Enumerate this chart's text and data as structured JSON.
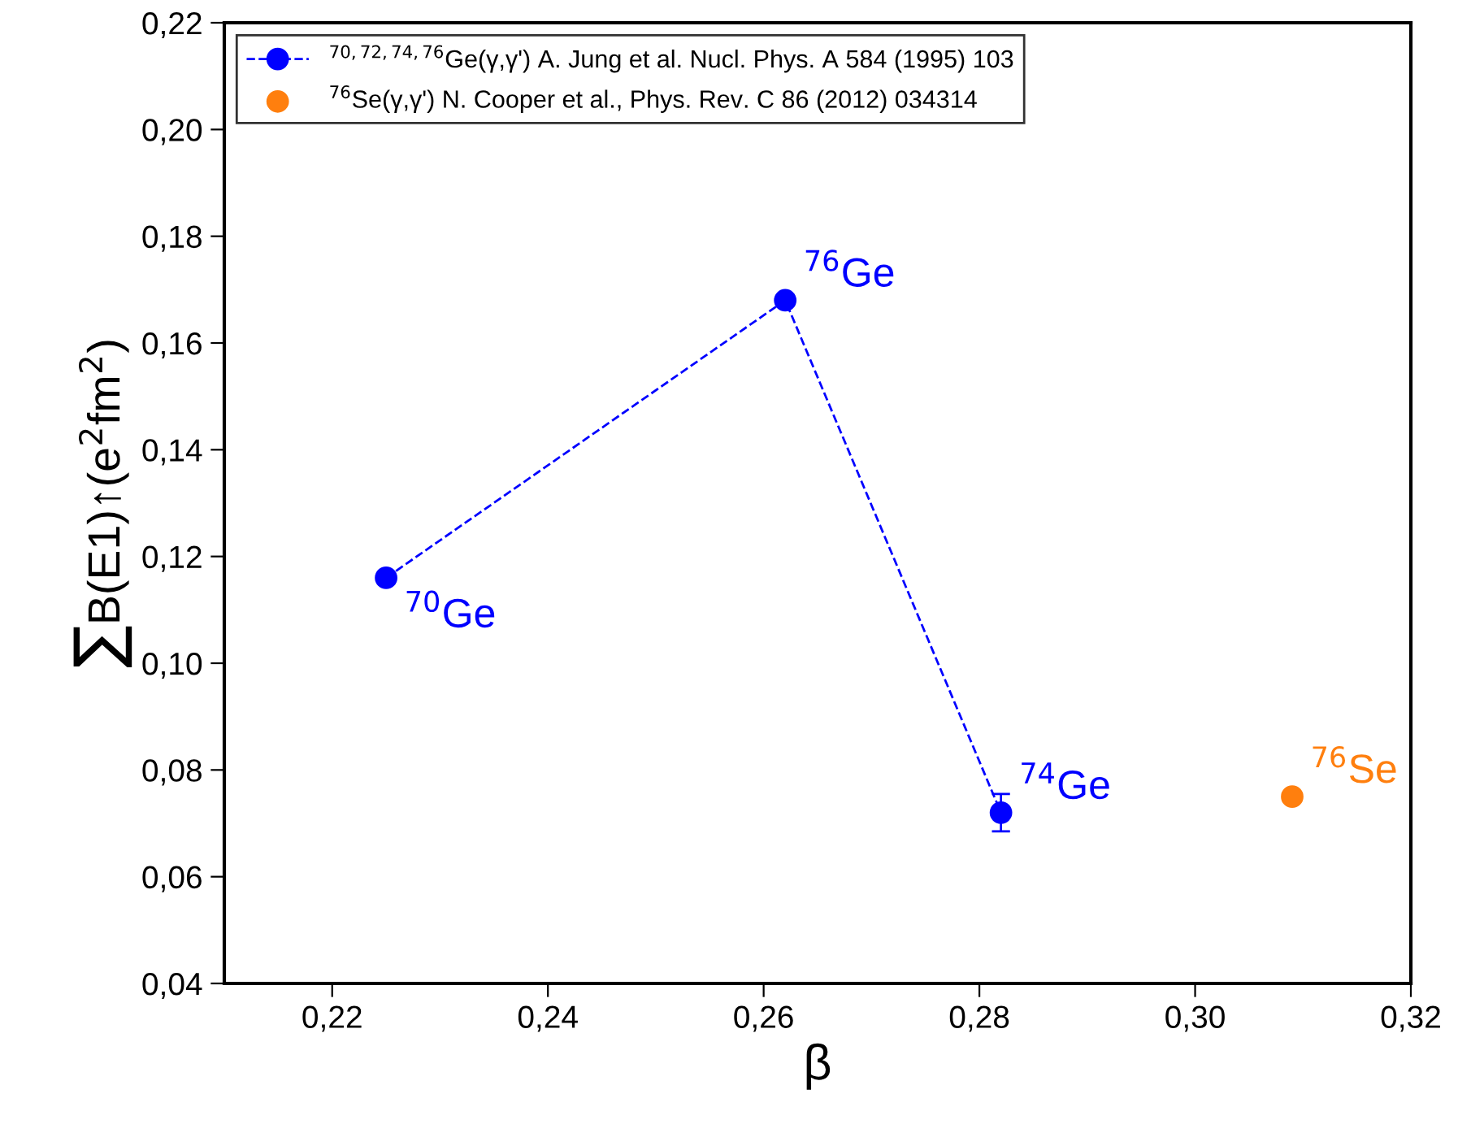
{
  "chart_data": {
    "type": "scatter",
    "xlabel": "β",
    "ylabel": "∑B(E1)↑(e$^{2}$fm$^{2}$)",
    "series": [
      {
        "name": "$^{70,72,74,76}$Ge(γ,γ') A. Jung et al. Nucl. Phys. A 584 (1995) 103",
        "type": "line",
        "color": "#0000ff",
        "x": [
          0.225,
          0.262,
          0.282
        ],
        "values": [
          0.116,
          0.168,
          0.072
        ],
        "errors": [
          0.001,
          0.001,
          0.0035
        ],
        "marker": "circle",
        "line_style": "dashed"
      },
      {
        "name": "$^{76}$Se(γ,γ') N. Cooper et al., Phys. Rev. C 86 (2012) 034314",
        "color": "#ff7f0e",
        "x": [
          0.309
        ],
        "values": [
          0.075
        ],
        "marker": "circle"
      }
    ],
    "annotations": [
      {
        "text": "$^{70}$Ge",
        "x": 0.225,
        "y": 0.116
      },
      {
        "text": "$^{76}$Ge",
        "x": 0.262,
        "y": 0.168
      },
      {
        "text": "$^{74}$Ge",
        "x": 0.282,
        "y": 0.072
      },
      {
        "text": "$^{76}$Se",
        "x": 0.309,
        "y": 0.075
      }
    ],
    "xlim": [
      0.21,
      0.32
    ],
    "xticks": [
      {
        "value": 0.22,
        "label": "0,22"
      },
      {
        "value": 0.24,
        "label": "0,24"
      },
      {
        "value": 0.26,
        "label": "0,26"
      },
      {
        "value": 0.28,
        "label": "0,28"
      },
      {
        "value": 0.3,
        "label": "0,30"
      },
      {
        "value": 0.32,
        "label": "0,32"
      }
    ],
    "ylim": [
      0.04,
      0.22
    ],
    "yticks": [
      {
        "value": 0.04,
        "label": "0,04"
      },
      {
        "value": 0.06,
        "label": "0,06"
      },
      {
        "value": 0.08,
        "label": "0,08"
      },
      {
        "value": 0.1,
        "label": "0,10"
      },
      {
        "value": 0.12,
        "label": "0,12"
      },
      {
        "value": 0.14,
        "label": "0,14"
      },
      {
        "value": 0.16,
        "label": "0,16"
      },
      {
        "value": 0.18,
        "label": "0,18"
      },
      {
        "value": 0.2,
        "label": "0,20"
      },
      {
        "value": 0.22,
        "label": "0,22"
      }
    ],
    "grid": false,
    "legend": "top left"
  }
}
